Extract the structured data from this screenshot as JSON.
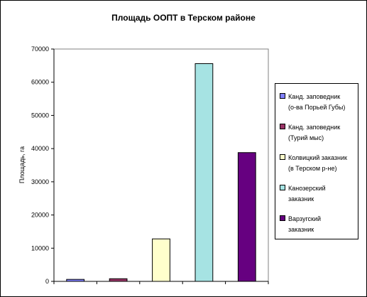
{
  "chart_data": {
    "type": "bar",
    "title": "Площадь ООПТ в Терском районе",
    "xlabel": "",
    "ylabel": "Площадь, га",
    "ylim": [
      0,
      70000
    ],
    "yticks": [
      0,
      10000,
      20000,
      30000,
      40000,
      50000,
      60000,
      70000
    ],
    "grid": false,
    "plot_background": "#ffffff",
    "legend_position": "right",
    "series": [
      {
        "name": "Канд. заповедник (о-ва Порьей Губы)",
        "value": 600,
        "color": "#8080ff"
      },
      {
        "name": "Канд. заповедник (Турий мыс)",
        "value": 800,
        "color": "#993366"
      },
      {
        "name": "Колвицкий заказник (в Терском р-не)",
        "value": 12800,
        "color": "#ffffcc"
      },
      {
        "name": "Канозерский заказник",
        "value": 65600,
        "color": "#a6e3e3"
      },
      {
        "name": "Варзугский заказник",
        "value": 38800,
        "color": "#660080"
      }
    ],
    "legend_lines": [
      [
        "Канд. заповедник",
        "(о-ва Порьей Губы)"
      ],
      [
        "Канд. заповедник",
        "(Турий мыс)"
      ],
      [
        "Колвицкий заказник",
        "(в Терском р-не)"
      ],
      [
        "Канозерский",
        "заказник"
      ],
      [
        "Варзугский",
        "заказник"
      ]
    ]
  }
}
